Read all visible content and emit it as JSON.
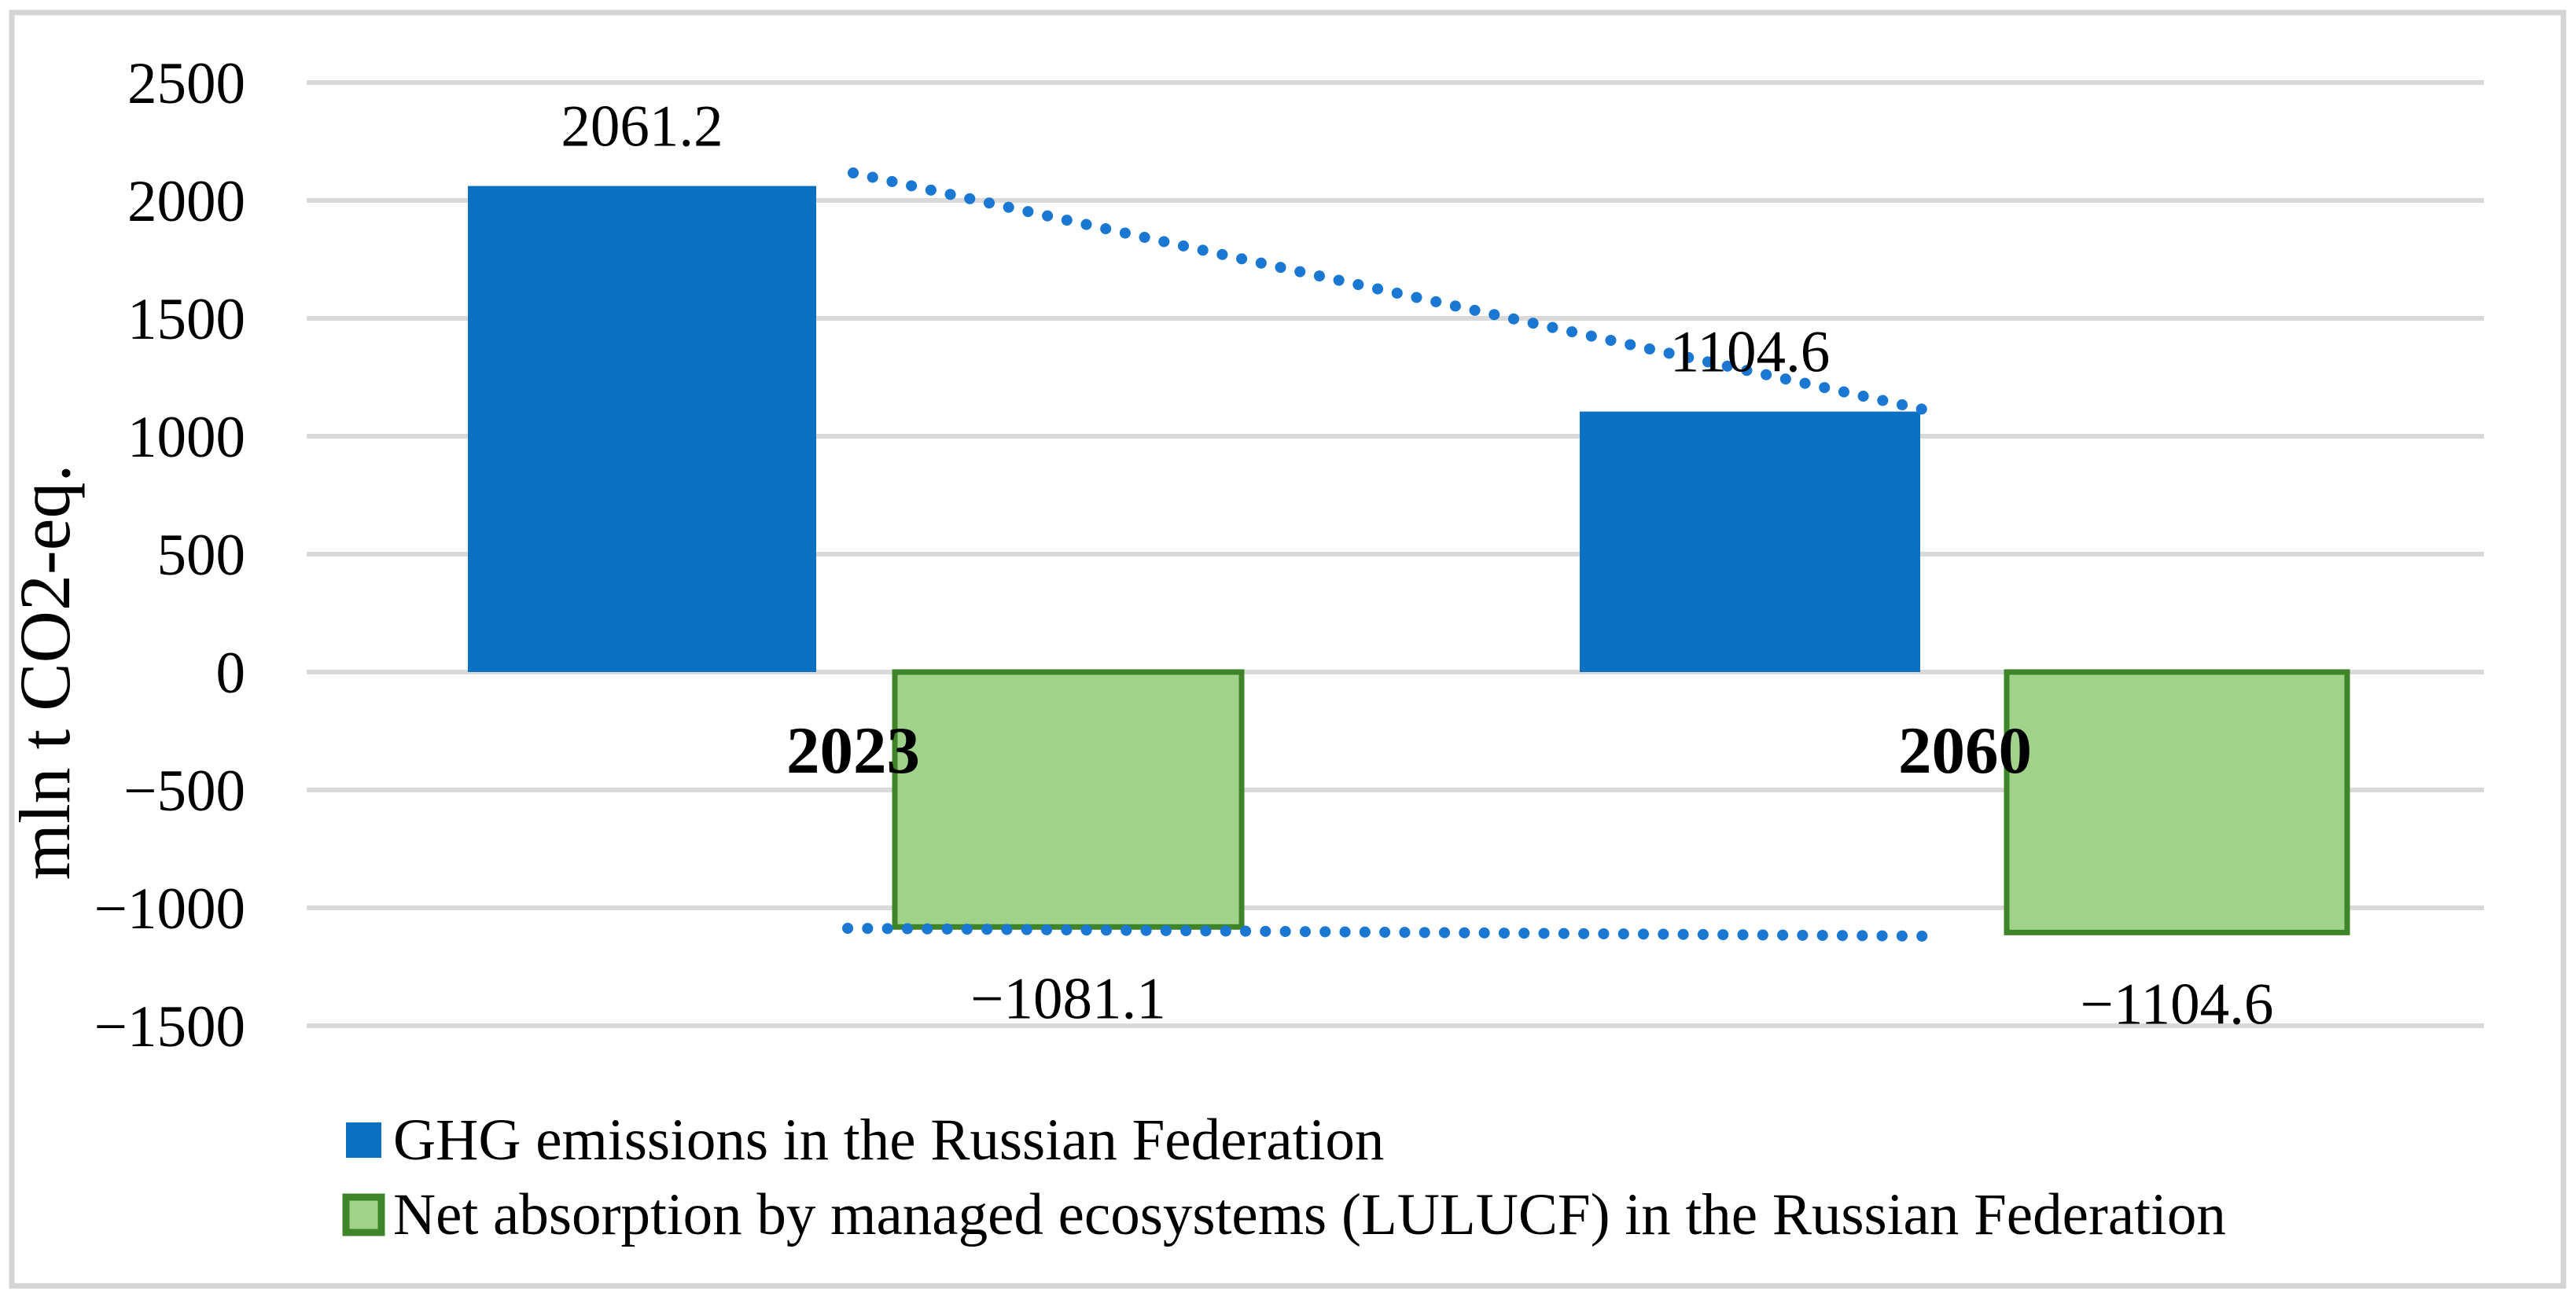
{
  "chart_data": {
    "type": "bar",
    "title": "",
    "categories": [
      "2023",
      "2060"
    ],
    "series": [
      {
        "name": "GHG emissions in the Russian Federation",
        "role": "emissions",
        "color": "#0A70C2",
        "values": [
          2061.2,
          1104.6
        ],
        "data_labels": [
          "2061.2",
          "1104.6"
        ]
      },
      {
        "name": "Net absorption by managed ecosystems (LULUCF) in the Russian Federation",
        "role": "absorption",
        "fill_color": "#A0D28A",
        "border_color": "#3E8428",
        "values": [
          -1081.1,
          -1104.6
        ],
        "data_labels": [
          "−1081.1",
          "−1104.6"
        ]
      }
    ],
    "trendlines": [
      {
        "for_series": "GHG emissions in the Russian Federation",
        "style": "dotted",
        "color": "#1B78D2"
      },
      {
        "for_series": "Net absorption by managed ecosystems (LULUCF) in the Russian Federation",
        "style": "dotted",
        "color": "#1B78D2"
      }
    ],
    "ylabel": "mln t CO2-eq.",
    "xlabel": "",
    "yticks": [
      2500,
      2000,
      1500,
      1000,
      500,
      0,
      -500,
      -1000,
      -1500
    ],
    "ytick_labels": [
      "2500",
      "2000",
      "1500",
      "1000",
      "500",
      "0",
      "−500",
      "−1000",
      "−1500"
    ],
    "ylim": [
      -1500,
      2500
    ],
    "grid": "horizontal",
    "legend_position": "bottom-left",
    "colors": {
      "grid": "#D9D9D9",
      "frame": "#D4D4D4",
      "text": "#000000",
      "background": "#FFFFFF"
    }
  }
}
